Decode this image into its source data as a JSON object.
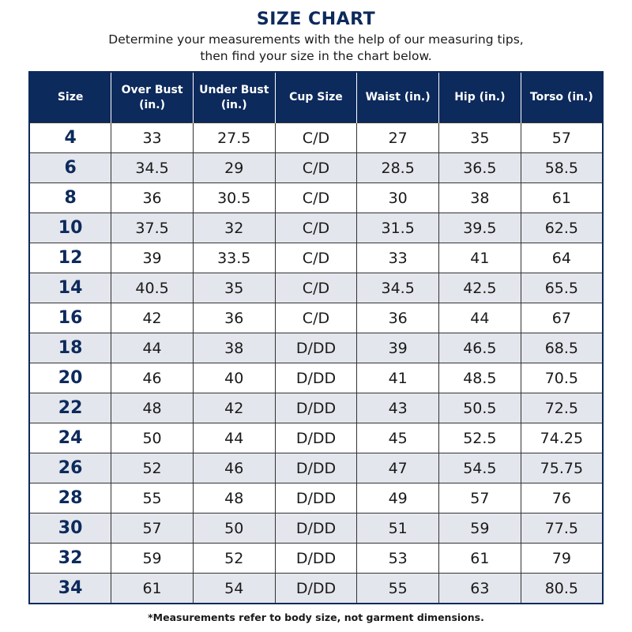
{
  "title": "SIZE CHART",
  "subtitle_line1": "Determine your measurements with the help of our measuring tips,",
  "subtitle_line2": "then find your size in the chart below.",
  "columns": [
    [
      "Size"
    ],
    [
      "Over Bust",
      "(in.)"
    ],
    [
      "Under Bust",
      "(in.)"
    ],
    [
      "Cup Size"
    ],
    [
      "Waist (in.)"
    ],
    [
      "Hip (in.)"
    ],
    [
      "Torso (in.)"
    ]
  ],
  "rows": [
    [
      "4",
      "33",
      "27.5",
      "C/D",
      "27",
      "35",
      "57"
    ],
    [
      "6",
      "34.5",
      "29",
      "C/D",
      "28.5",
      "36.5",
      "58.5"
    ],
    [
      "8",
      "36",
      "30.5",
      "C/D",
      "30",
      "38",
      "61"
    ],
    [
      "10",
      "37.5",
      "32",
      "C/D",
      "31.5",
      "39.5",
      "62.5"
    ],
    [
      "12",
      "39",
      "33.5",
      "C/D",
      "33",
      "41",
      "64"
    ],
    [
      "14",
      "40.5",
      "35",
      "C/D",
      "34.5",
      "42.5",
      "65.5"
    ],
    [
      "16",
      "42",
      "36",
      "C/D",
      "36",
      "44",
      "67"
    ],
    [
      "18",
      "44",
      "38",
      "D/DD",
      "39",
      "46.5",
      "68.5"
    ],
    [
      "20",
      "46",
      "40",
      "D/DD",
      "41",
      "48.5",
      "70.5"
    ],
    [
      "22",
      "48",
      "42",
      "D/DD",
      "43",
      "50.5",
      "72.5"
    ],
    [
      "24",
      "50",
      "44",
      "D/DD",
      "45",
      "52.5",
      "74.25"
    ],
    [
      "26",
      "52",
      "46",
      "D/DD",
      "47",
      "54.5",
      "75.75"
    ],
    [
      "28",
      "55",
      "48",
      "D/DD",
      "49",
      "57",
      "76"
    ],
    [
      "30",
      "57",
      "50",
      "D/DD",
      "51",
      "59",
      "77.5"
    ],
    [
      "32",
      "59",
      "52",
      "D/DD",
      "53",
      "61",
      "79"
    ],
    [
      "34",
      "61",
      "54",
      "D/DD",
      "55",
      "63",
      "80.5"
    ]
  ],
  "footnote": "*Measurements refer to body size, not garment dimensions.",
  "colors": {
    "header": "#0d2a5c",
    "alt_row": "#e3e6ec"
  }
}
